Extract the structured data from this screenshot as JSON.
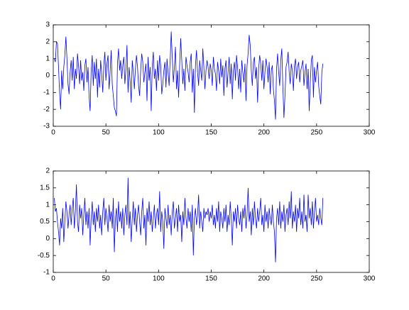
{
  "chart_data": [
    {
      "type": "line",
      "color": "#0000ff",
      "xlim": [
        0,
        300
      ],
      "xticks": [
        0,
        50,
        100,
        150,
        200,
        250,
        300
      ],
      "ylim": [
        -3,
        3
      ],
      "yticks": [
        -3,
        -2,
        -1,
        0,
        1,
        2,
        3
      ],
      "x": [
        1,
        2,
        3,
        4,
        5,
        6,
        7,
        8,
        9,
        10,
        11,
        12,
        13,
        14,
        15,
        16,
        17,
        18,
        19,
        20,
        21,
        22,
        23,
        24,
        25,
        26,
        27,
        28,
        29,
        30,
        31,
        32,
        33,
        34,
        35,
        36,
        37,
        38,
        39,
        40,
        41,
        42,
        43,
        44,
        45,
        46,
        47,
        48,
        49,
        50,
        51,
        52,
        53,
        54,
        55,
        56,
        57,
        58,
        59,
        60,
        61,
        62,
        63,
        64,
        65,
        66,
        67,
        68,
        69,
        70,
        71,
        72,
        73,
        74,
        75,
        76,
        77,
        78,
        79,
        80,
        81,
        82,
        83,
        84,
        85,
        86,
        87,
        88,
        89,
        90,
        91,
        92,
        93,
        94,
        95,
        96,
        97,
        98,
        99,
        100,
        101,
        102,
        103,
        104,
        105,
        106,
        107,
        108,
        109,
        110,
        111,
        112,
        113,
        114,
        115,
        116,
        117,
        118,
        119,
        120,
        121,
        122,
        123,
        124,
        125,
        126,
        127,
        128,
        129,
        130,
        131,
        132,
        133,
        134,
        135,
        136,
        137,
        138,
        139,
        140,
        141,
        142,
        143,
        144,
        145,
        146,
        147,
        148,
        149,
        150,
        151,
        152,
        153,
        154,
        155,
        156,
        157,
        158,
        159,
        160,
        161,
        162,
        163,
        164,
        165,
        166,
        167,
        168,
        169,
        170,
        171,
        172,
        173,
        174,
        175,
        176,
        177,
        178,
        179,
        180,
        181,
        182,
        183,
        184,
        185,
        186,
        187,
        188,
        189,
        190,
        191,
        192,
        193,
        194,
        195,
        196,
        197,
        198,
        199,
        200,
        201,
        202,
        203,
        204,
        205,
        206,
        207,
        208,
        209,
        210,
        211,
        212,
        213,
        214,
        215,
        216,
        217,
        218,
        219,
        220,
        221,
        222,
        223,
        224,
        225,
        226,
        227,
        228,
        229,
        230,
        231,
        232,
        233,
        234,
        235,
        236,
        237,
        238,
        239,
        240,
        241,
        242,
        243,
        244,
        245,
        246,
        247,
        248,
        249,
        250,
        251,
        252,
        253,
        254,
        255,
        256
      ],
      "values": [
        1.0,
        0.8,
        2.0,
        1.9,
        0.5,
        -1.0,
        -2.0,
        0.3,
        -0.8,
        0.5,
        1.2,
        2.3,
        1.0,
        -0.5,
        -1.1,
        0.2,
        0.9,
        -0.3,
        1.1,
        -0.8,
        0.4,
        -0.2,
        1.3,
        0.6,
        -0.5,
        0.9,
        -0.3,
        0.2,
        -0.9,
        0.6,
        1.0,
        -0.4,
        0.5,
        -1.2,
        -2.1,
        0.3,
        1.2,
        -0.6,
        0.8,
        -0.2,
        1.0,
        -1.3,
        0.4,
        -0.7,
        0.9,
        0.1,
        -1.0,
        0.6,
        1.4,
        -0.3,
        0.7,
        1.2,
        -0.8,
        0.2,
        1.5,
        -0.5,
        -1.2,
        -1.9,
        -2.1,
        -2.4,
        0.8,
        1.6,
        0.3,
        0.9,
        -0.2,
        0.6,
        1.1,
        -0.5,
        0.4,
        1.8,
        -1.0,
        0.5,
        -0.3,
        -1.6,
        0.9,
        0.2,
        -0.8,
        0.4,
        1.2,
        0.5,
        -0.6,
        -1.2,
        0.3,
        1.3,
        0.8,
        -0.4,
        0.2,
        0.7,
        -1.5,
        1.1,
        -0.3,
        0.5,
        -2.1,
        0.6,
        1.4,
        -0.2,
        0.4,
        -0.9,
        0.9,
        -0.3,
        1.2,
        0.6,
        -1.1,
        -0.5,
        0.3,
        0.8,
        -0.7,
        1.0,
        0.2,
        -0.6,
        0.9,
        2.6,
        1.0,
        -0.4,
        0.5,
        1.7,
        -0.8,
        0.3,
        -1.3,
        0.6,
        2.2,
        0.9,
        -0.5,
        0.4,
        -0.9,
        1.1,
        0.6,
        0.2,
        -0.4,
        0.8,
        1.3,
        -1.0,
        0.4,
        -2.2,
        0.6,
        1.5,
        0.2,
        -0.6,
        0.9,
        0.3,
        -0.3,
        1.6,
        0.5,
        -0.8,
        0.3,
        0.9,
        0.5,
        -0.2,
        0.7,
        0.3,
        -0.6,
        1.1,
        0.4,
        0.1,
        -0.9,
        0.8,
        0.3,
        -0.5,
        1.0,
        -0.1,
        0.6,
        -1.2,
        0.4,
        0.9,
        -0.7,
        0.2,
        1.1,
        -0.5,
        0.7,
        -1.4,
        0.3,
        0.8,
        -0.3,
        1.2,
        0.5,
        -0.8,
        0.4,
        -1.0,
        0.9,
        0.2,
        -0.4,
        0.7,
        -1.5,
        0.6,
        1.3,
        2.4,
        1.8,
        0.3,
        -0.6,
        0.8,
        1.1,
        -0.2,
        0.5,
        -1.6,
        0.4,
        1.2,
        0.7,
        -0.3,
        0.9,
        -0.8,
        0.2,
        1.0,
        0.5,
        -0.4,
        0.8,
        -1.1,
        0.3,
        0.6,
        -0.8,
        -1.5,
        -2.6,
        0.4,
        1.3,
        0.2,
        -0.6,
        0.9,
        1.6,
        -0.7,
        -2.5,
        -1.2,
        0.5,
        0.8,
        1.4,
        0.2,
        -0.5,
        0.7,
        0.3,
        -0.9,
        0.6,
        1.0,
        -0.2,
        0.5,
        0.8,
        -0.4,
        0.3,
        0.6,
        0.9,
        -0.6,
        0.2,
        0.7,
        -0.8,
        0.4,
        -2.1,
        -0.5,
        0.9,
        1.2,
        -1.3,
        0.5,
        -0.4,
        0.3,
        0.8,
        -0.6,
        -1.2,
        -1.7,
        0.2,
        0.7
      ]
    },
    {
      "type": "line",
      "color": "#0000ff",
      "xlim": [
        0,
        300
      ],
      "xticks": [
        0,
        50,
        100,
        150,
        200,
        250,
        300
      ],
      "ylim": [
        -1,
        2
      ],
      "yticks": [
        -1,
        -0.5,
        0,
        0.5,
        1,
        1.5,
        2
      ],
      "x": [
        1,
        2,
        3,
        4,
        5,
        6,
        7,
        8,
        9,
        10,
        11,
        12,
        13,
        14,
        15,
        16,
        17,
        18,
        19,
        20,
        21,
        22,
        23,
        24,
        25,
        26,
        27,
        28,
        29,
        30,
        31,
        32,
        33,
        34,
        35,
        36,
        37,
        38,
        39,
        40,
        41,
        42,
        43,
        44,
        45,
        46,
        47,
        48,
        49,
        50,
        51,
        52,
        53,
        54,
        55,
        56,
        57,
        58,
        59,
        60,
        61,
        62,
        63,
        64,
        65,
        66,
        67,
        68,
        69,
        70,
        71,
        72,
        73,
        74,
        75,
        76,
        77,
        78,
        79,
        80,
        81,
        82,
        83,
        84,
        85,
        86,
        87,
        88,
        89,
        90,
        91,
        92,
        93,
        94,
        95,
        96,
        97,
        98,
        99,
        100,
        101,
        102,
        103,
        104,
        105,
        106,
        107,
        108,
        109,
        110,
        111,
        112,
        113,
        114,
        115,
        116,
        117,
        118,
        119,
        120,
        121,
        122,
        123,
        124,
        125,
        126,
        127,
        128,
        129,
        130,
        131,
        132,
        133,
        134,
        135,
        136,
        137,
        138,
        139,
        140,
        141,
        142,
        143,
        144,
        145,
        146,
        147,
        148,
        149,
        150,
        151,
        152,
        153,
        154,
        155,
        156,
        157,
        158,
        159,
        160,
        161,
        162,
        163,
        164,
        165,
        166,
        167,
        168,
        169,
        170,
        171,
        172,
        173,
        174,
        175,
        176,
        177,
        178,
        179,
        180,
        181,
        182,
        183,
        184,
        185,
        186,
        187,
        188,
        189,
        190,
        191,
        192,
        193,
        194,
        195,
        196,
        197,
        198,
        199,
        200,
        201,
        202,
        203,
        204,
        205,
        206,
        207,
        208,
        209,
        210,
        211,
        212,
        213,
        214,
        215,
        216,
        217,
        218,
        219,
        220,
        221,
        222,
        223,
        224,
        225,
        226,
        227,
        228,
        229,
        230,
        231,
        232,
        233,
        234,
        235,
        236,
        237,
        238,
        239,
        240,
        241,
        242,
        243,
        244,
        245,
        246,
        247,
        248,
        249,
        250,
        251,
        252,
        253,
        254,
        255,
        256
      ],
      "values": [
        1.2,
        0.8,
        0.9,
        0.5,
        0.2,
        -0.2,
        0.6,
        0.3,
        0.9,
        -0.1,
        0.5,
        1.1,
        0.8,
        0.3,
        0.7,
        1.0,
        0.4,
        0.9,
        1.2,
        0.3,
        0.8,
        1.6,
        0.5,
        0.2,
        1.0,
        0.6,
        0.9,
        0.1,
        0.7,
        1.2,
        0.4,
        0.8,
        0.3,
        0.9,
        -0.2,
        0.6,
        1.1,
        0.4,
        0.8,
        0.2,
        0.9,
        0.5,
        1.0,
        0.3,
        0.7,
        0.1,
        0.8,
        1.2,
        0.4,
        0.9,
        0.6,
        0.2,
        1.0,
        0.5,
        0.8,
        0.3,
        1.2,
        -0.4,
        0.6,
        0.9,
        0.2,
        1.1,
        0.5,
        0.8,
        0.3,
        0.9,
        0.1,
        0.7,
        1.0,
        0.4,
        1.8,
        0.3,
        0.8,
        -0.1,
        0.6,
        1.1,
        0.4,
        0.9,
        0.2,
        0.7,
        1.0,
        0.5,
        0.1,
        0.8,
        1.2,
        0.3,
        0.7,
        -0.2,
        0.9,
        0.5,
        1.1,
        0.4,
        0.8,
        0.2,
        0.6,
        1.0,
        0.3,
        0.7,
        0.9,
        0.4,
        1.4,
        0.2,
        0.8,
        0.5,
        -0.3,
        0.9,
        0.6,
        0.3,
        1.0,
        0.4,
        0.7,
        0.1,
        0.8,
        1.1,
        0.3,
        0.6,
        0.9,
        0.2,
        1.0,
        0.5,
        0.7,
        -0.1,
        0.8,
        0.4,
        1.2,
        0.6,
        0.3,
        0.9,
        0.5,
        0.8,
        0.2,
        1.0,
        -0.5,
        0.6,
        0.9,
        0.4,
        0.7,
        1.3,
        0.3,
        0.8,
        0.5,
        0.2,
        0.9,
        0.6,
        0.8,
        0.7,
        0.9,
        0.5,
        0.8,
        0.6,
        1.0,
        0.4,
        0.7,
        0.3,
        0.9,
        0.5,
        1.1,
        0.2,
        0.8,
        0.6,
        0.3,
        0.9,
        0.5,
        1.0,
        0.2,
        0.7,
        0.4,
        1.1,
        0.6,
        -0.2,
        0.8,
        0.5,
        0.9,
        0.3,
        1.0,
        0.6,
        0.4,
        0.8,
        0.2,
        0.9,
        0.6,
        1.0,
        0.3,
        0.7,
        1.5,
        0.5,
        0.8,
        0.1,
        0.9,
        0.4,
        1.1,
        0.6,
        0.3,
        0.9,
        0.5,
        0.8,
        1.2,
        0.4,
        0.7,
        0.2,
        1.0,
        0.5,
        0.8,
        0.3,
        0.9,
        0.6,
        0.4,
        1.0,
        0.5,
        0.2,
        -0.7,
        0.6,
        0.9,
        0.4,
        1.1,
        0.3,
        0.8,
        0.5,
        1.0,
        0.2,
        0.7,
        0.9,
        0.4,
        1.1,
        0.6,
        1.4,
        0.3,
        0.8,
        0.5,
        1.0,
        0.2,
        0.9,
        0.6,
        1.2,
        0.4,
        0.8,
        0.3,
        1.3,
        0.5,
        0.7,
        0.2,
        1.3,
        0.6,
        0.9,
        0.4,
        1.1,
        0.3,
        0.8,
        1.2,
        0.5,
        0.7,
        0.4,
        0.9,
        0.6,
        0.4,
        1.2
      ]
    }
  ]
}
